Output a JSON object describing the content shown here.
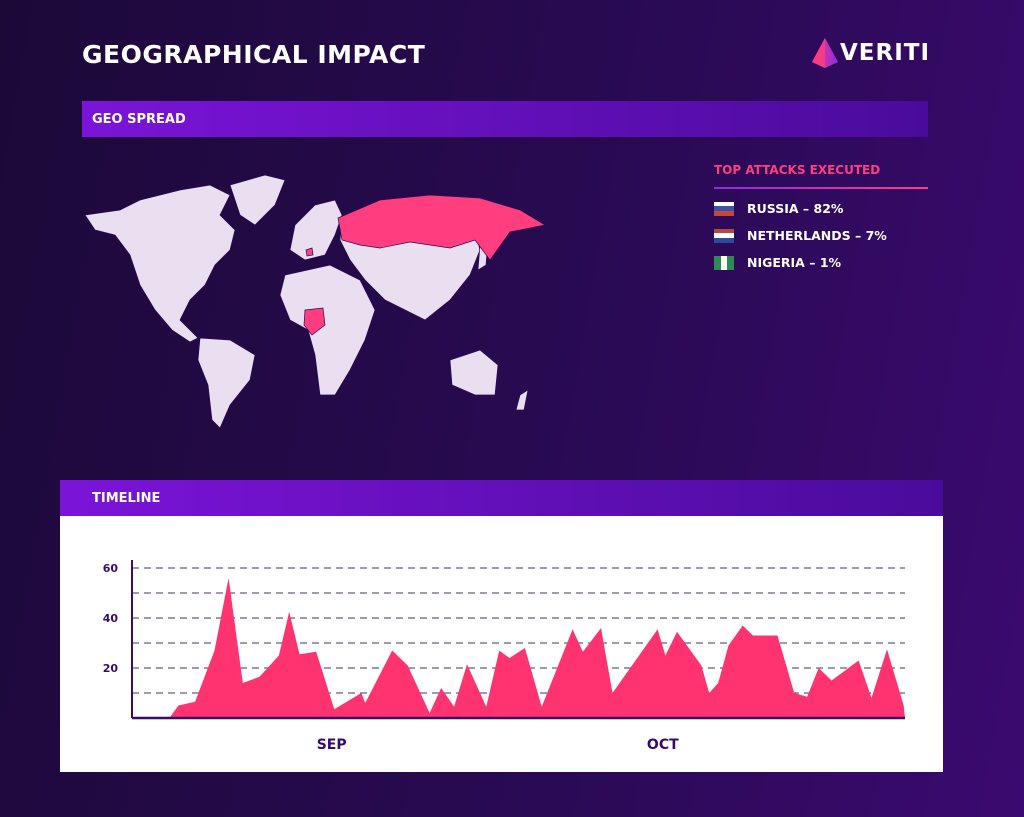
{
  "header": {
    "title": "GEOGRAPHICAL IMPACT",
    "logo_text": "VERITI"
  },
  "geo": {
    "section_label": "GEO SPREAD",
    "legend": {
      "title": "TOP ATTACKS EXECUTED",
      "items": [
        {
          "label": "RUSSIA – 82%",
          "flag": [
            "#ffffff",
            "#3a53a4",
            "#c8473a"
          ]
        },
        {
          "label": "NETHERLANDS – 7%",
          "flag": [
            "#b5483b",
            "#ffffff",
            "#2f4a98"
          ]
        },
        {
          "label": "NIGERIA – 1%",
          "flag": [
            "#2e8b57",
            "#ffffff",
            "#2e8b57"
          ]
        }
      ]
    },
    "highlight_color": "#ff3d7f",
    "land_color": "#e9dff1"
  },
  "timeline": {
    "section_label": "TIMELINE"
  },
  "chart_data": {
    "type": "area",
    "title": "TIMELINE",
    "xlabel": "",
    "ylabel": "",
    "ylim": [
      0,
      60
    ],
    "xlim": [
      0,
      60
    ],
    "yticks": [
      {
        "value": 20,
        "label": "20"
      },
      {
        "value": 40,
        "label": "40"
      },
      {
        "value": 60,
        "label": "60"
      }
    ],
    "gridlines": [
      10,
      20,
      30,
      40,
      50,
      60
    ],
    "xticks": [
      {
        "value": 15.5,
        "label": "SEP"
      },
      {
        "value": 41.2,
        "label": "OCT"
      }
    ],
    "color": "#ff3370",
    "x": [
      0,
      2.9,
      3.6,
      4.9,
      6.4,
      7.5,
      8.6,
      9.9,
      11.4,
      12.2,
      13.0,
      14.3,
      15.7,
      17.8,
      18.1,
      20.2,
      21.4,
      23.1,
      24.0,
      25.0,
      26.0,
      27.5,
      28.5,
      29.3,
      30.5,
      31.8,
      34.2,
      35.0,
      36.4,
      37.3,
      40.8,
      41.4,
      42.3,
      44.2,
      44.8,
      45.5,
      46.3,
      47.4,
      48.2,
      50.1,
      51.4,
      52.4,
      53.3,
      54.3,
      56.4,
      57.4,
      58.6,
      59.9,
      60
    ],
    "y": [
      0,
      0,
      5,
      6.5,
      27,
      56,
      14,
      16.5,
      25,
      42.5,
      25.5,
      26.5,
      3.5,
      10,
      6,
      27,
      21,
      2,
      12,
      4.5,
      21.5,
      4.5,
      27,
      24,
      28,
      4.5,
      35.5,
      26.5,
      36,
      10,
      35.5,
      25,
      34.5,
      21,
      10,
      14,
      29,
      37,
      33,
      33,
      10,
      8.5,
      20,
      15,
      23,
      8,
      27.5,
      5,
      0
    ]
  }
}
